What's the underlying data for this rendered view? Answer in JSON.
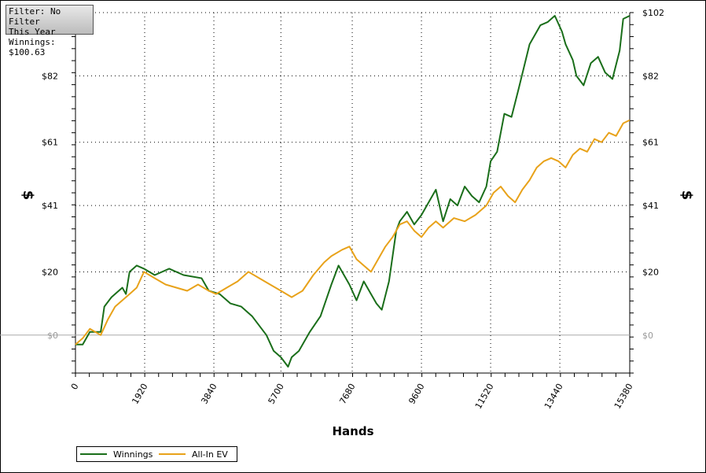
{
  "info": {
    "filter": "Filter: No Filter",
    "period": "This Year",
    "winnings": "Winnings: $100.63"
  },
  "chart_data": {
    "type": "line",
    "xlabel": "Hands",
    "ylabel_left": "$",
    "ylabel_right": "$",
    "xlim": [
      0,
      15380
    ],
    "ylim": [
      -12,
      102
    ],
    "x_ticks": [
      "0",
      "1920",
      "3840",
      "5700",
      "7680",
      "9600",
      "11520",
      "13440",
      "15380"
    ],
    "x_tick_values": [
      0,
      1920,
      3840,
      5700,
      7680,
      9600,
      11520,
      13440,
      15380
    ],
    "y_ticks": [
      "$0",
      "$20",
      "$41",
      "$61",
      "$82",
      "$102"
    ],
    "y_tick_values": [
      0,
      20,
      41,
      61,
      82,
      102
    ],
    "grid": true,
    "legend_position": "bottom-left",
    "series": [
      {
        "name": "Winnings",
        "color": "#1a6e1a",
        "x": [
          0,
          200,
          400,
          700,
          800,
          1000,
          1300,
          1400,
          1500,
          1700,
          1900,
          2200,
          2600,
          3000,
          3500,
          3700,
          4000,
          4300,
          4600,
          4900,
          5300,
          5500,
          5700,
          5900,
          6000,
          6200,
          6500,
          6800,
          7100,
          7300,
          7600,
          7800,
          8000,
          8200,
          8350,
          8500,
          8700,
          8900,
          9000,
          9200,
          9400,
          9600,
          9800,
          10000,
          10200,
          10400,
          10600,
          10800,
          11000,
          11200,
          11400,
          11520,
          11700,
          11900,
          12100,
          12300,
          12600,
          12900,
          13100,
          13300,
          13500,
          13600,
          13800,
          13900,
          14100,
          14300,
          14500,
          14700,
          14900,
          15100,
          15200,
          15380
        ],
        "y": [
          -3,
          -3,
          1,
          1,
          9,
          12,
          15,
          13,
          20,
          22,
          21,
          19,
          21,
          19,
          18,
          14,
          13,
          10,
          9,
          6,
          0,
          -5,
          -7,
          -10,
          -7,
          -5,
          1,
          6,
          16,
          22,
          16,
          11,
          17,
          13,
          10,
          8,
          17,
          33,
          36,
          39,
          35,
          38,
          42,
          46,
          36,
          43,
          41,
          47,
          44,
          42,
          47,
          55,
          58,
          70,
          69,
          78,
          92,
          98,
          99,
          101,
          96,
          92,
          87,
          82,
          79,
          86,
          88,
          83,
          81,
          90,
          100,
          101
        ]
      },
      {
        "name": "All-In EV",
        "color": "#e8a21a",
        "x": [
          0,
          200,
          400,
          700,
          900,
          1100,
          1300,
          1500,
          1700,
          1900,
          2200,
          2500,
          2800,
          3100,
          3400,
          3700,
          3900,
          4200,
          4500,
          4800,
          5100,
          5400,
          5700,
          6000,
          6300,
          6600,
          6900,
          7100,
          7400,
          7600,
          7800,
          8000,
          8200,
          8400,
          8600,
          8800,
          9000,
          9200,
          9400,
          9600,
          9800,
          10000,
          10200,
          10500,
          10800,
          11100,
          11400,
          11600,
          11800,
          12000,
          12200,
          12400,
          12600,
          12800,
          13000,
          13200,
          13400,
          13600,
          13800,
          14000,
          14200,
          14400,
          14600,
          14800,
          15000,
          15200,
          15380
        ],
        "y": [
          -3,
          -1,
          2,
          0,
          5,
          9,
          11,
          13,
          15,
          20,
          18,
          16,
          15,
          14,
          16,
          14,
          13,
          15,
          17,
          20,
          18,
          16,
          14,
          12,
          14,
          19,
          23,
          25,
          27,
          28,
          24,
          22,
          20,
          24,
          28,
          31,
          35,
          36,
          33,
          31,
          34,
          36,
          34,
          37,
          36,
          38,
          41,
          45,
          47,
          44,
          42,
          46,
          49,
          53,
          55,
          56,
          55,
          53,
          57,
          59,
          58,
          62,
          61,
          64,
          63,
          67,
          68
        ]
      }
    ]
  },
  "legend": {
    "winnings_label": "Winnings",
    "ev_label": "All-In EV"
  }
}
